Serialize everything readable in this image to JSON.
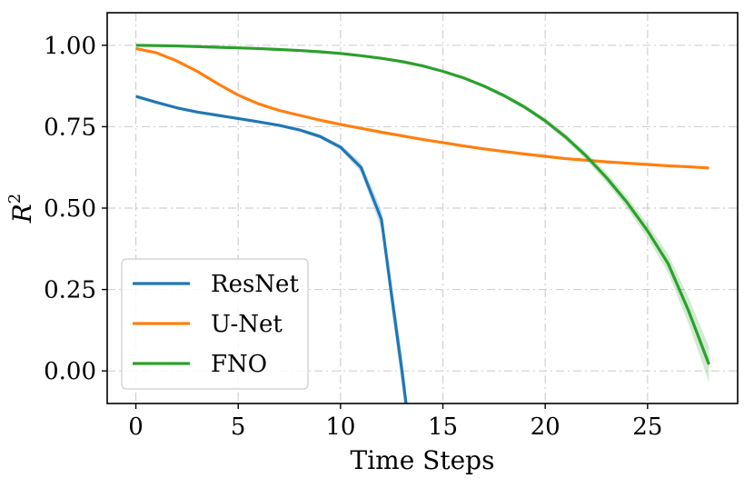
{
  "chart_data": {
    "type": "line",
    "xlabel": "Time Steps",
    "ylabel": "R",
    "ylabel_sup": "2",
    "xlim": [
      -1.4,
      29.4
    ],
    "ylim": [
      -0.1,
      1.1
    ],
    "xticks": [
      0,
      5,
      10,
      15,
      20,
      25
    ],
    "xtick_labels": [
      "0",
      "5",
      "10",
      "15",
      "20",
      "25"
    ],
    "yticks": [
      0.0,
      0.25,
      0.5,
      0.75,
      1.0
    ],
    "ytick_labels": [
      "0.00",
      "0.25",
      "0.50",
      "0.75",
      "1.00"
    ],
    "grid": true,
    "legend_position": "lower-left",
    "series": [
      {
        "name": "ResNet",
        "color": "#1f77b4",
        "x": [
          0,
          1,
          2,
          3,
          4,
          5,
          6,
          7,
          8,
          9,
          10,
          11,
          12,
          12.5,
          13,
          13.2
        ],
        "y": [
          0.843,
          0.825,
          0.808,
          0.795,
          0.785,
          0.775,
          0.765,
          0.754,
          0.74,
          0.72,
          0.687,
          0.625,
          0.465,
          0.23,
          0.0,
          -0.1
        ],
        "band": [
          0.003,
          0.003,
          0.003,
          0.003,
          0.003,
          0.003,
          0.004,
          0.004,
          0.005,
          0.006,
          0.008,
          0.015,
          0.03,
          0.04,
          0.05,
          0.05
        ]
      },
      {
        "name": "U-Net",
        "color": "#ff7f0e",
        "x": [
          0,
          1,
          2,
          3,
          4,
          5,
          6,
          7,
          8,
          9,
          10,
          11,
          12,
          13,
          14,
          15,
          16,
          17,
          18,
          19,
          20,
          21,
          22,
          23,
          24,
          25,
          26,
          27,
          28
        ],
        "y": [
          0.99,
          0.977,
          0.952,
          0.92,
          0.882,
          0.847,
          0.82,
          0.8,
          0.785,
          0.77,
          0.757,
          0.745,
          0.733,
          0.722,
          0.711,
          0.701,
          0.691,
          0.682,
          0.674,
          0.666,
          0.659,
          0.652,
          0.647,
          0.642,
          0.638,
          0.634,
          0.63,
          0.627,
          0.623
        ],
        "band": [
          0.002,
          0.002,
          0.002,
          0.002,
          0.003,
          0.003,
          0.003,
          0.003,
          0.003,
          0.003,
          0.003,
          0.003,
          0.003,
          0.003,
          0.003,
          0.004,
          0.004,
          0.004,
          0.004,
          0.004,
          0.004,
          0.004,
          0.004,
          0.004,
          0.004,
          0.004,
          0.004,
          0.004,
          0.004
        ]
      },
      {
        "name": "FNO",
        "color": "#2ca02c",
        "x": [
          0,
          1,
          2,
          3,
          4,
          5,
          6,
          7,
          8,
          9,
          10,
          11,
          12,
          13,
          14,
          15,
          16,
          17,
          18,
          19,
          20,
          21,
          22,
          23,
          24,
          25,
          26,
          27,
          28
        ],
        "y": [
          1.0,
          0.999,
          0.998,
          0.996,
          0.994,
          0.992,
          0.99,
          0.987,
          0.984,
          0.98,
          0.975,
          0.968,
          0.96,
          0.95,
          0.937,
          0.92,
          0.9,
          0.875,
          0.845,
          0.81,
          0.768,
          0.718,
          0.66,
          0.593,
          0.517,
          0.43,
          0.33,
          0.185,
          0.02
        ],
        "band": [
          0.001,
          0.001,
          0.001,
          0.001,
          0.001,
          0.001,
          0.001,
          0.001,
          0.001,
          0.002,
          0.002,
          0.002,
          0.002,
          0.003,
          0.003,
          0.004,
          0.004,
          0.005,
          0.006,
          0.007,
          0.008,
          0.01,
          0.012,
          0.015,
          0.018,
          0.022,
          0.028,
          0.04,
          0.055
        ]
      }
    ]
  }
}
